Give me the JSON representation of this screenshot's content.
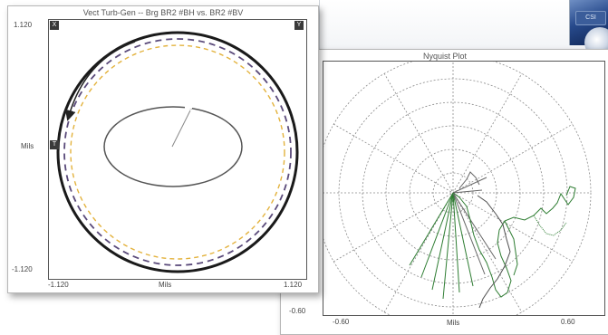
{
  "orbit_window": {
    "title": "Vect Turb-Gen -- Brg BR2 #BH vs. BR2 #BV",
    "y_max_label": "1.120",
    "y_min_label": "-1.120",
    "x_min_label": "-1.120",
    "x_max_label": "1.120",
    "x_unit_label": "Mils",
    "y_unit_label": "Mils",
    "corner_left_label": "X",
    "corner_right_label": "Y",
    "side_marker_label": "T",
    "colors": {
      "outer_ring": "#1a1a1a",
      "dashed_ring": "#5a4a7a",
      "yellow_ring": "#e3b23c",
      "orbit": "#555555"
    }
  },
  "nyquist_window": {
    "title": "Nyquist Plot",
    "x_min_label": "-0.60",
    "x_max_label": "0.60",
    "x_unit_label": "Mils",
    "y_min_label": "-0.60",
    "colors": {
      "grid": "#8a8a8a",
      "trace": "#2e7d32"
    }
  },
  "background": {
    "thumb_label": "CSI"
  }
}
